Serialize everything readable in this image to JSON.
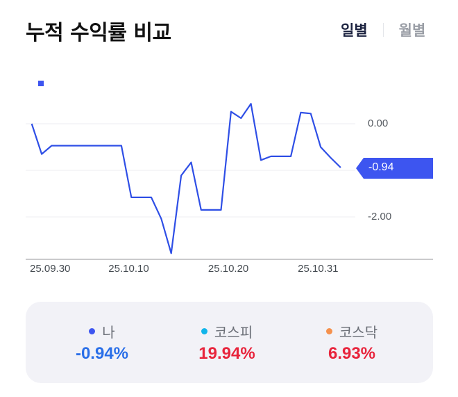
{
  "header": {
    "title": "누적 수익률 비교",
    "toggle": {
      "daily": "일별",
      "monthly": "월별",
      "active": "daily"
    }
  },
  "colors": {
    "line": "#2f4fe6",
    "tag": "#3d55f0",
    "me": "#3d55f0",
    "kospi": "#12b5ea",
    "kosdaq": "#f5914d",
    "negative": "#2a6fe8",
    "positive": "#e8243c"
  },
  "chart_data": {
    "type": "line",
    "title": "누적 수익률 비교",
    "xlabel": "",
    "ylabel": "",
    "series": [
      {
        "name": "나",
        "values": [
          0.0,
          -0.65,
          -0.47,
          -0.47,
          -0.47,
          -0.47,
          -0.47,
          -0.47,
          -0.47,
          -0.47,
          -1.58,
          -1.58,
          -1.58,
          -2.04,
          -2.78,
          -1.11,
          -0.83,
          -1.85,
          -1.85,
          -1.85,
          0.26,
          0.12,
          0.43,
          -0.78,
          -0.7,
          -0.7,
          -0.7,
          0.24,
          0.22,
          -0.5,
          -0.73,
          -0.94
        ]
      }
    ],
    "x_tick_labels": [
      {
        "index": 0,
        "label": "25.09.30"
      },
      {
        "index": 10,
        "label": "25.10.10"
      },
      {
        "index": 20,
        "label": "25.10.20"
      },
      {
        "index": 29,
        "label": "25.10.31"
      }
    ],
    "y_tick_labels": [
      "0.00",
      "-2.00"
    ],
    "y_gridlines": [
      0,
      -1,
      -2
    ],
    "ylim": [
      -2.9,
      0.55
    ],
    "current_value_label": "-0.94",
    "grid": true,
    "legend_position": "top-left"
  },
  "summary": [
    {
      "name": "나",
      "value": "-0.94%",
      "dot": "me",
      "tone": "negative"
    },
    {
      "name": "코스피",
      "value": "19.94%",
      "dot": "kospi",
      "tone": "positive"
    },
    {
      "name": "코스닥",
      "value": "6.93%",
      "dot": "kosdaq",
      "tone": "positive"
    }
  ]
}
